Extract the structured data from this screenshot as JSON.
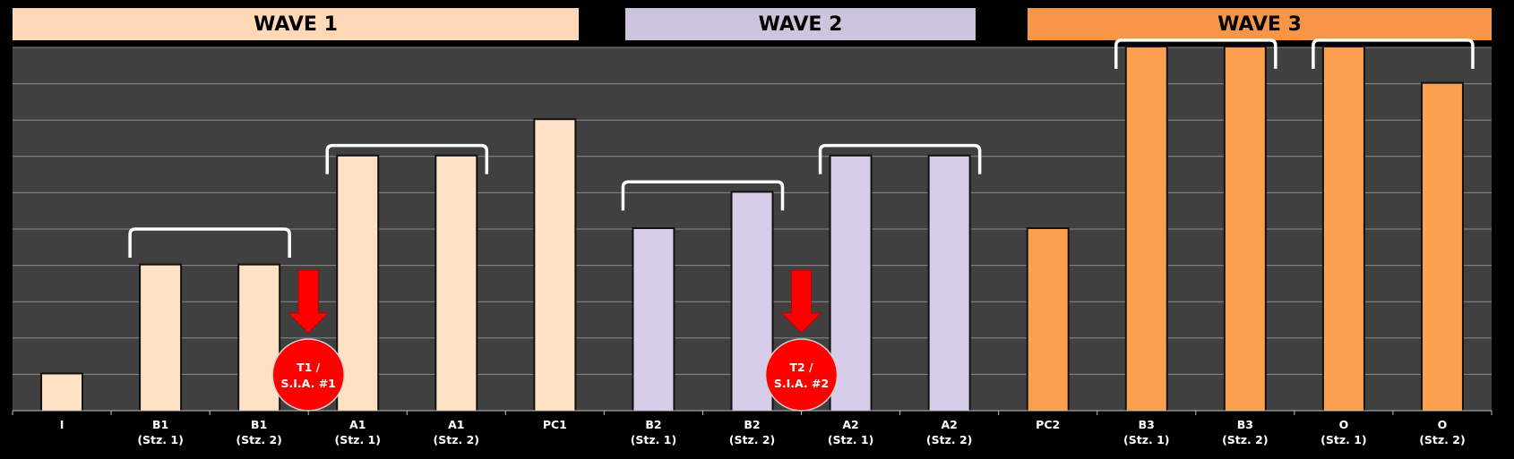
{
  "waves": [
    {
      "label": "WAVE 1",
      "color": "#FFD9B7"
    },
    {
      "label": "WAVE 2",
      "color": "#CDC4DE"
    },
    {
      "label": "WAVE 3",
      "color": "#F79646"
    }
  ],
  "chart_data": {
    "type": "bar",
    "ylim": [
      0,
      10
    ],
    "grid": true,
    "background": "#404040",
    "categories": [
      {
        "line1": "I",
        "line2": ""
      },
      {
        "line1": "B1",
        "line2": "(Stz. 1)"
      },
      {
        "line1": "B1",
        "line2": "(Stz. 2)"
      },
      {
        "line1": "A1",
        "line2": "(Stz. 1)"
      },
      {
        "line1": "A1",
        "line2": "(Stz. 2)"
      },
      {
        "line1": "PC1",
        "line2": ""
      },
      {
        "line1": "B2",
        "line2": "(Stz. 1)"
      },
      {
        "line1": "B2",
        "line2": "(Stz. 2)"
      },
      {
        "line1": "A2",
        "line2": "(Stz. 1)"
      },
      {
        "line1": "A2",
        "line2": "(Stz. 2)"
      },
      {
        "line1": "PC2",
        "line2": ""
      },
      {
        "line1": "B3",
        "line2": "(Stz. 1)"
      },
      {
        "line1": "B3",
        "line2": "(Stz. 2)"
      },
      {
        "line1": "O",
        "line2": "(Stz. 1)"
      },
      {
        "line1": "O",
        "line2": "(Stz. 2)"
      }
    ],
    "values": [
      1,
      4,
      4,
      7,
      7,
      8,
      5,
      6,
      7,
      7,
      5,
      10,
      10,
      10,
      9
    ],
    "bar_colors": [
      "#FFE2C4",
      "#FFE2C4",
      "#FFE2C4",
      "#FFE2C4",
      "#FFE2C4",
      "#FFE2C4",
      "#D8CDE8",
      "#D8CDE8",
      "#D8CDE8",
      "#D8CDE8",
      "#FBA04E",
      "#FBA04E",
      "#FBA04E",
      "#FBA04E",
      "#FBA04E"
    ],
    "brackets": [
      {
        "from": 1,
        "to": 2,
        "level": 5
      },
      {
        "from": 3,
        "to": 4,
        "level": 7.3
      },
      {
        "from": 6,
        "to": 7,
        "level": 6.3
      },
      {
        "from": 8,
        "to": 9,
        "level": 7.3
      },
      {
        "from": 11,
        "to": 12,
        "level": 10.2
      },
      {
        "from": 13,
        "to": 14,
        "level": 10.2
      }
    ],
    "markers": [
      {
        "after": 2,
        "line1": "T1 /",
        "line2": "S.I.A. #1",
        "color": "#FF0000"
      },
      {
        "after": 7,
        "line1": "T2 /",
        "line2": "S.I.A. #2",
        "color": "#FF0000"
      }
    ]
  }
}
